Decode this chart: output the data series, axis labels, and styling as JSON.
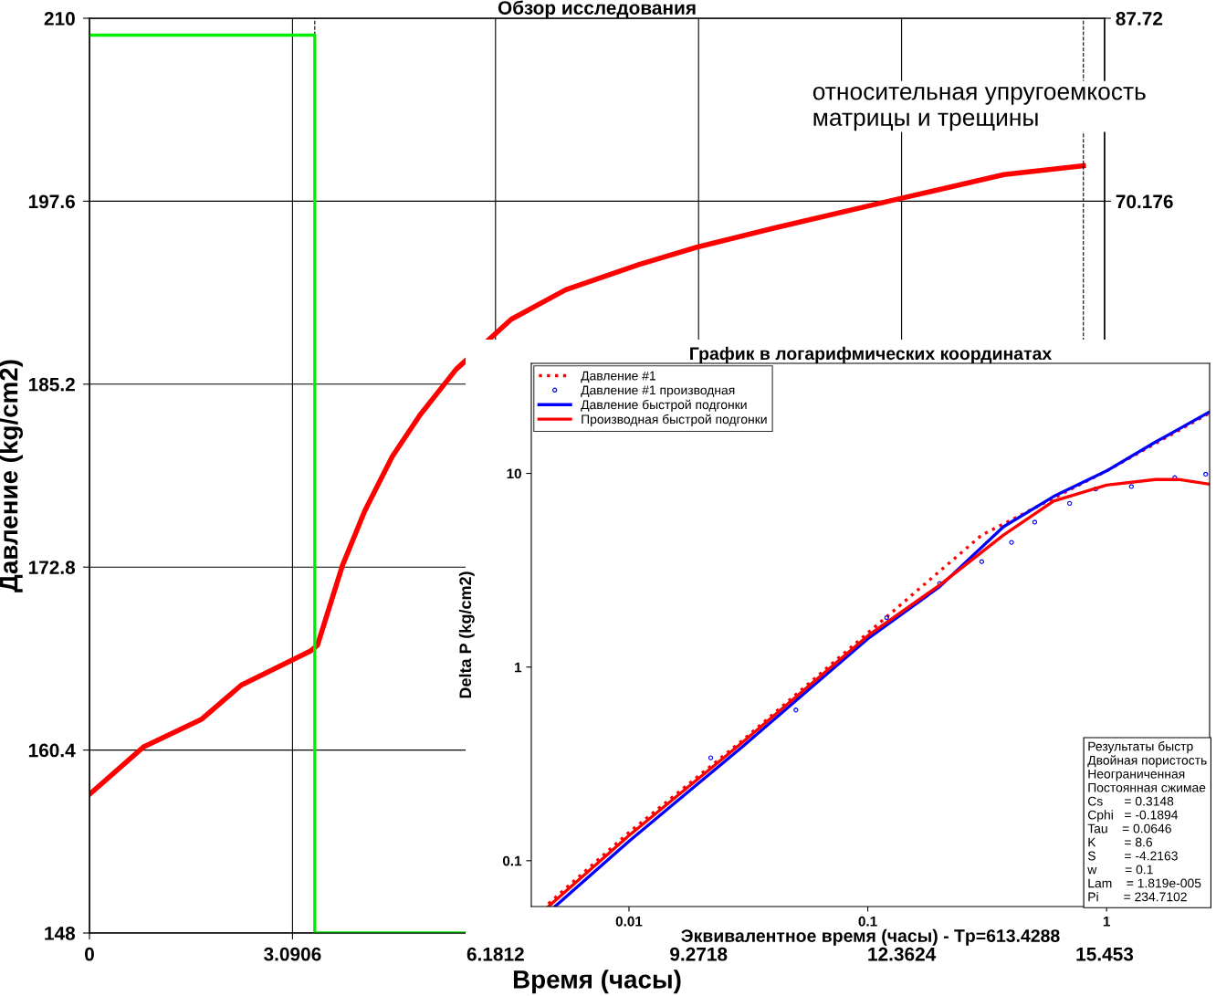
{
  "chart_data": [
    {
      "type": "line",
      "title": "Обзор исследования",
      "xlabel": "Время (часы)",
      "ylabel": "Давление (kg/cm2)",
      "xlim": [
        0,
        15.453
      ],
      "xticks": [
        0,
        3.0906,
        6.1812,
        9.2718,
        12.3624,
        15.453
      ],
      "ylim": [
        148,
        210
      ],
      "yticks": [
        148,
        160.4,
        172.8,
        185.2,
        197.6,
        210
      ],
      "y2lim": [
        0,
        87.72
      ],
      "y2ticks": [
        70.176,
        87.72
      ],
      "grid": true,
      "legend": false,
      "ref_lines": [
        {
          "axis": "x",
          "value": 3.43,
          "line_style": "dashed",
          "color": "#000000"
        },
        {
          "axis": "x",
          "value": 15.13,
          "line_style": "dashed",
          "color": "#000000"
        }
      ],
      "annotations": [
        "относительная упругоемкость\nматрицы и трещины"
      ],
      "series": [
        {
          "color": "#ff0000",
          "x": [
            0,
            0.82,
            1.71,
            2.31,
            3.36,
            3.47,
            3.85,
            4.19,
            4.61,
            5.03,
            5.58,
            6.42,
            7.25,
            8.36,
            9.26,
            10.44,
            12.36,
            13.92,
            15.13
          ],
          "values": [
            157.4,
            160.6,
            162.5,
            164.8,
            167.1,
            167.5,
            172.9,
            176.6,
            180.3,
            183.1,
            186.2,
            189.6,
            191.6,
            193.3,
            194.5,
            195.8,
            197.8,
            199.4,
            200.0
          ]
        },
        {
          "color": "#00ee00",
          "axis": "y2",
          "x": [
            0,
            3.43,
            3.43,
            5.72
          ],
          "values": [
            86.1,
            86.1,
            0,
            0
          ]
        }
      ]
    },
    {
      "type": "line",
      "title": "График в логарифмических координатах",
      "xlabel": "Эквивалентное время (часы) - Tp=613.4288",
      "ylabel": "Delta P (kg/cm2)",
      "log": "xy",
      "xlim": [
        0.0039,
        2.7
      ],
      "xticks": [
        0.01,
        0.1,
        1
      ],
      "ylim": [
        0.058,
        37
      ],
      "yticks": [
        0.1,
        1,
        10
      ],
      "grid": false,
      "legend": "top left",
      "annotations": [
        "Результаты быстр",
        "Двойная пористость",
        "Неограниченная",
        "Постоянная сжимае",
        "Cs      = 0.3148",
        "Cphi   = -0.1894",
        "Tau    = 0.0646",
        "K        = 8.6",
        "S        = -4.2163",
        "w        = 0.1",
        "Lam    = 1.819e-005",
        "Pi       = 234.7102"
      ],
      "series": [
        {
          "name": "Давление #1",
          "color": "#ff0000",
          "line_style": "dotted",
          "x": [
            0.0046,
            0.01,
            0.03,
            0.1,
            0.3,
            1,
            2.7
          ],
          "values": [
            0.06,
            0.14,
            0.42,
            1.5,
            4.8,
            10.3,
            20.5
          ]
        },
        {
          "name": "Давление #1 производная",
          "type": "scatter",
          "marker": "circle",
          "color": "#0000ff",
          "x": [
            0.022,
            0.05,
            0.12,
            0.2,
            0.3,
            0.4,
            0.5,
            0.7,
            0.9,
            1.27,
            1.93,
            2.6
          ],
          "values": [
            0.34,
            0.6,
            1.8,
            2.7,
            3.5,
            4.4,
            5.6,
            7.0,
            8.3,
            8.55,
            9.5,
            9.9
          ]
        },
        {
          "name": "Давление быстрой подгонки",
          "color": "#0000ff",
          "line_style": "solid",
          "x": [
            0.0049,
            0.01,
            0.03,
            0.1,
            0.2,
            0.37,
            0.6,
            1,
            1.6,
            2.7
          ],
          "values": [
            0.058,
            0.126,
            0.39,
            1.4,
            2.6,
            5.3,
            7.6,
            10.3,
            14.5,
            20.8
          ]
        },
        {
          "name": "Производная быстрой подгонки",
          "color": "#ff0000",
          "line_style": "solid",
          "x": [
            0.0046,
            0.01,
            0.03,
            0.1,
            0.2,
            0.37,
            0.6,
            1,
            1.6,
            2.0,
            2.7
          ],
          "values": [
            0.058,
            0.135,
            0.41,
            1.45,
            2.65,
            4.8,
            7.2,
            8.7,
            9.3,
            9.3,
            8.8
          ]
        }
      ]
    }
  ]
}
